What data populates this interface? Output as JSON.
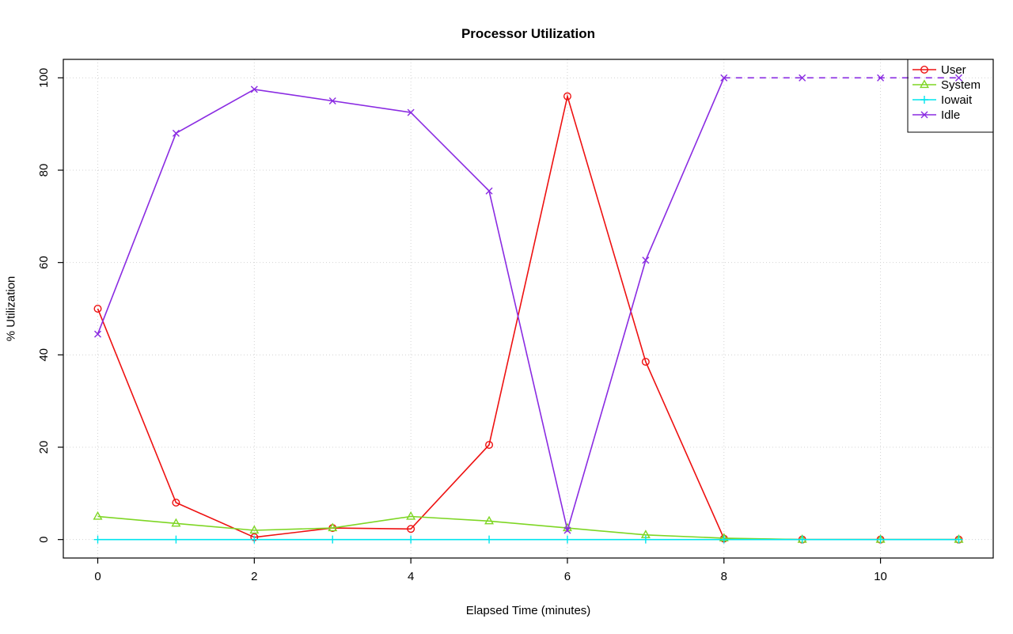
{
  "chart_data": {
    "type": "line",
    "title": "Processor Utilization",
    "xlabel": "Elapsed Time (minutes)",
    "ylabel": "% Utilization",
    "x": [
      0,
      1,
      2,
      3,
      4,
      5,
      6,
      7,
      8,
      9,
      10,
      11
    ],
    "xlim": [
      0,
      11
    ],
    "ylim": [
      0,
      100
    ],
    "x_ticks": [
      0,
      2,
      4,
      6,
      8,
      10
    ],
    "y_ticks": [
      0,
      20,
      40,
      60,
      80,
      100
    ],
    "grid": true,
    "grid_color": "#d3d3d3",
    "axis_color": "#000000",
    "background_color": "#ffffff",
    "legend_position": "top-right",
    "series": [
      {
        "name": "User",
        "color": "#ee1111",
        "marker": "circle",
        "line_style": "solid",
        "values": [
          50,
          8,
          0.5,
          2.5,
          2.3,
          20.5,
          96,
          38.5,
          0.2,
          0,
          0,
          0
        ]
      },
      {
        "name": "System",
        "color": "#7ed624",
        "marker": "triangle",
        "line_style": "solid",
        "values": [
          5,
          3.5,
          2,
          2.5,
          5,
          4,
          2.5,
          1,
          0.3,
          0,
          0,
          0
        ]
      },
      {
        "name": "Iowait",
        "color": "#00e5ee",
        "marker": "plus",
        "line_style": "solid",
        "values": [
          0,
          0,
          0,
          0,
          0,
          0,
          0,
          0,
          0,
          0,
          0,
          0
        ]
      },
      {
        "name": "Idle",
        "color": "#8a2be2",
        "marker": "x",
        "line_style": "solid",
        "dashed_after_x": 8,
        "values": [
          44.5,
          88,
          97.5,
          95,
          92.5,
          75.5,
          2,
          60.5,
          100,
          100,
          100,
          100
        ]
      }
    ]
  }
}
